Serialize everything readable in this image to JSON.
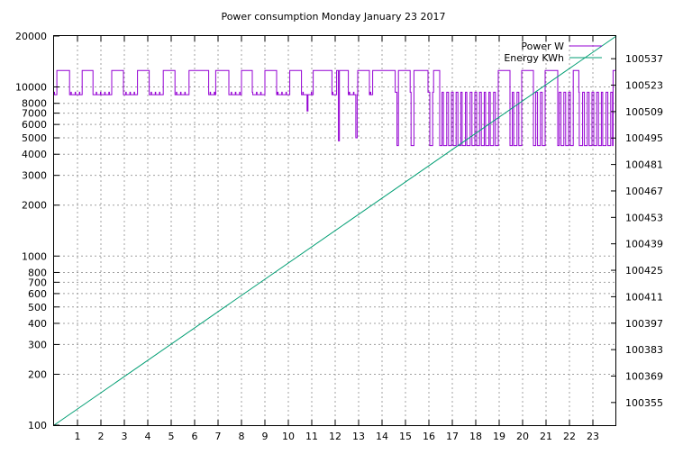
{
  "chart_data": {
    "type": "line",
    "title": "Power consumption Monday January 23 2017",
    "xlabel": "",
    "ylabel": "",
    "y2label": "",
    "grid": true,
    "legend_position": "top-right",
    "xlim": [
      0,
      24
    ],
    "x_ticks": [
      "1",
      "2",
      "3",
      "4",
      "5",
      "6",
      "7",
      "8",
      "9",
      "10",
      "11",
      "12",
      "13",
      "14",
      "15",
      "16",
      "17",
      "18",
      "19",
      "20",
      "21",
      "22",
      "23"
    ],
    "y_scale": "log",
    "ylim": [
      100,
      20000
    ],
    "y_ticks": [
      "100",
      "200",
      "300",
      "400",
      "500",
      "600",
      "700",
      "800",
      "1000",
      "2000",
      "3000",
      "4000",
      "5000",
      "6000",
      "7000",
      "8000",
      "10000",
      "20000"
    ],
    "y2lim": [
      100343,
      100549
    ],
    "y2_ticks": [
      "100355",
      "100369",
      "100383",
      "100397",
      "100411",
      "100425",
      "100439",
      "100453",
      "100467",
      "100481",
      "100495",
      "100509",
      "100523",
      "100537"
    ],
    "series": [
      {
        "name": "Power W",
        "color": "#9400d3",
        "axis": "y",
        "on_value": 12500,
        "idle_value": 9000,
        "peak_value": 9300,
        "low_value": 4500,
        "on_intervals": [
          [
            0.12,
            0.65
          ],
          [
            1.2,
            1.65
          ],
          [
            2.45,
            2.95
          ],
          [
            3.55,
            4.05
          ],
          [
            4.65,
            5.15
          ],
          [
            5.75,
            6.6
          ],
          [
            6.9,
            7.45
          ],
          [
            8.0,
            8.45
          ],
          [
            9.0,
            9.5
          ],
          [
            10.05,
            10.55
          ],
          [
            11.05,
            11.85
          ],
          [
            12.05,
            12.55
          ],
          [
            12.95,
            13.45
          ],
          [
            13.6,
            14.55
          ],
          [
            14.7,
            15.2
          ],
          [
            15.35,
            15.95
          ],
          [
            16.2,
            16.45
          ],
          [
            18.95,
            19.45
          ],
          [
            19.95,
            20.45
          ],
          [
            20.95,
            21.5
          ],
          [
            22.15,
            22.4
          ],
          [
            23.85,
            24.0
          ]
        ],
        "dips": [
          [
            10.8,
            7200
          ],
          [
            12.15,
            4800
          ],
          [
            12.9,
            5000
          ]
        ],
        "cycling_start": 14.55,
        "cycling_end": 24.0,
        "cycling_period": 0.2
      },
      {
        "name": "Energy KWh",
        "color": "#009e73",
        "axis": "y2",
        "x": [
          0,
          24
        ],
        "values": [
          100343,
          100549
        ]
      }
    ]
  }
}
